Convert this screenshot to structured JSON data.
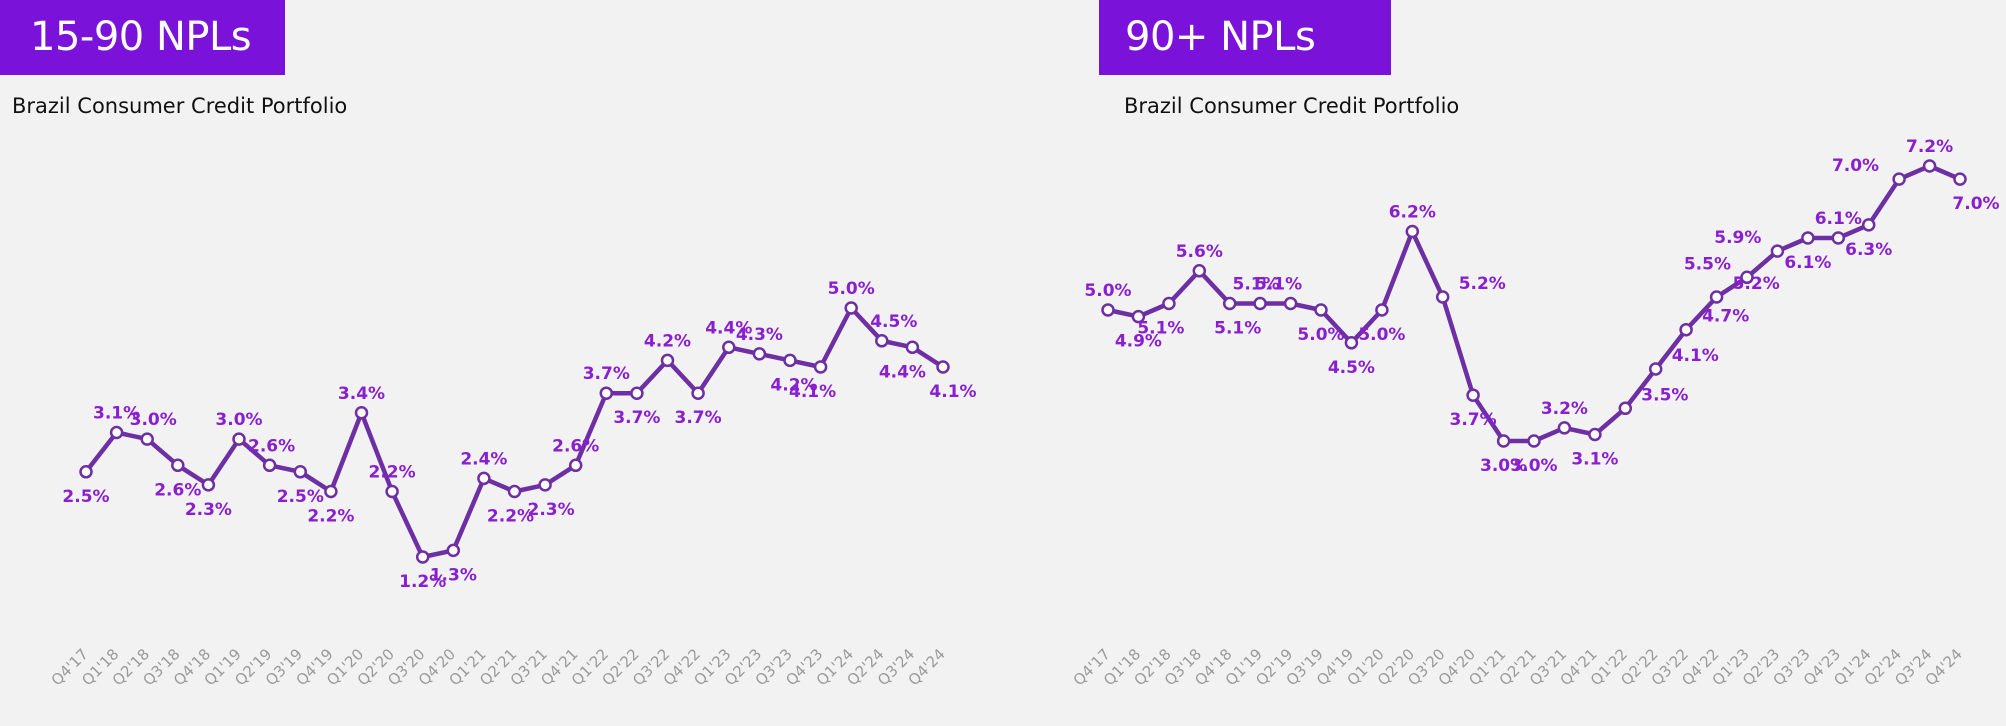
{
  "colors": {
    "accent": "#7b12d9",
    "line": "#6d2fa3",
    "label": "#8a1fd0",
    "tick": "#9a9a9a"
  },
  "charts": [
    {
      "title": "15-90 NPLs",
      "subtitle": "Brazil Consumer Credit Portfolio"
    },
    {
      "title": "90+ NPLs",
      "subtitle": "Brazil Consumer Credit Portfolio"
    }
  ],
  "chart_data": [
    {
      "type": "line",
      "title": "15-90 NPLs",
      "subtitle": "Brazil Consumer Credit Portfolio",
      "categories": [
        "Q4'17",
        "Q1'18",
        "Q2'18",
        "Q3'18",
        "Q4'18",
        "Q1'19",
        "Q2'19",
        "Q3'19",
        "Q4'19",
        "Q1'20",
        "Q2'20",
        "Q3'20",
        "Q4'20",
        "Q1'21",
        "Q2'21",
        "Q3'21",
        "Q4'21",
        "Q1'22",
        "Q2'22",
        "Q3'22",
        "Q4'22",
        "Q1'23",
        "Q2'23",
        "Q3'23",
        "Q4'23",
        "Q1'24",
        "Q2'24",
        "Q3'24",
        "Q4'24"
      ],
      "values": [
        2.5,
        3.1,
        3.0,
        2.6,
        2.3,
        3.0,
        2.6,
        2.5,
        2.2,
        3.4,
        2.2,
        1.2,
        1.3,
        2.4,
        2.2,
        2.3,
        2.6,
        3.7,
        3.7,
        4.2,
        3.7,
        4.4,
        4.3,
        4.2,
        4.1,
        5.0,
        4.5,
        4.4,
        4.1
      ],
      "data_labels": [
        "2.5%",
        "3.1%",
        "3.0%",
        "2.6%",
        "2.3%",
        "3.0%",
        "2.6%",
        "2.5%",
        "2.2%",
        "3.4%",
        "2.2%",
        "1.2%",
        "1.3%",
        "2.4%",
        "2.2%",
        "2.3%",
        "2.6%",
        "3.7%",
        "3.7%",
        "4.2%",
        "3.7%",
        "4.4%",
        "4.3%",
        "4.2%",
        "4.1%",
        "5.0%",
        "4.5%",
        "4.4%",
        "4.1%"
      ],
      "xlabel": "",
      "ylabel": "",
      "grid": false,
      "legend": "none"
    },
    {
      "type": "line",
      "title": "90+ NPLs",
      "subtitle": "Brazil Consumer Credit Portfolio",
      "categories": [
        "Q4'17",
        "Q1'18",
        "Q2'18",
        "Q3'18",
        "Q4'18",
        "Q1'19",
        "Q2'19",
        "Q3'19",
        "Q4'19",
        "Q1'20",
        "Q2'20",
        "Q3'20",
        "Q4'20",
        "Q1'21",
        "Q2'21",
        "Q3'21",
        "Q4'21",
        "Q1'22",
        "Q2'22",
        "Q3'22",
        "Q4'22",
        "Q1'23",
        "Q2'23",
        "Q3'23",
        "Q4'23",
        "Q1'24",
        "Q2'24",
        "Q3'24",
        "Q4'24"
      ],
      "values": [
        5.0,
        4.9,
        5.1,
        5.6,
        5.1,
        5.1,
        5.1,
        5.0,
        4.5,
        5.0,
        6.2,
        5.2,
        3.7,
        3.0,
        3.0,
        3.2,
        3.1,
        3.5,
        4.1,
        4.7,
        5.2,
        5.5,
        5.9,
        6.1,
        6.1,
        6.3,
        7.0,
        7.2,
        7.0
      ],
      "data_labels": [
        "5.0%",
        "4.9%",
        "5.1%",
        "5.6%",
        "5.1%",
        "5.1%",
        "5.1%",
        "5.0%",
        "4.5%",
        "5.0%",
        "6.2%",
        "5.2%",
        "3.7%",
        "3.0%",
        "3.0%",
        "3.2%",
        "3.1%",
        "3.5%",
        "4.1%",
        "4.7%",
        "5.2%",
        "5.5%",
        "5.9%",
        "6.1%",
        "6.1%",
        "6.3%",
        "7.0%",
        "7.2%",
        "7.0%"
      ],
      "xlabel": "",
      "ylabel": "",
      "grid": false,
      "legend": "none"
    }
  ]
}
